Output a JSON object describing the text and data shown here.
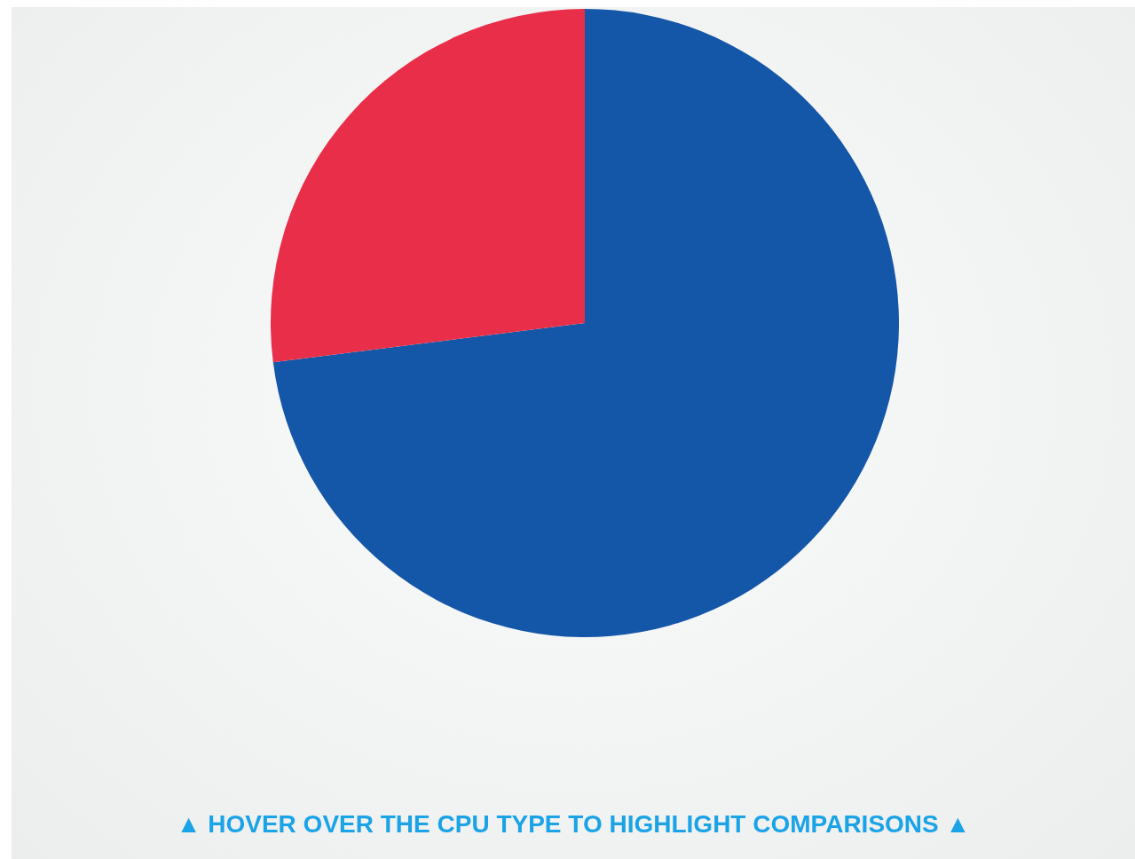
{
  "chart_data": {
    "type": "pie",
    "categories": [
      null,
      null
    ],
    "values": [
      73,
      27
    ],
    "colors": [
      "#1456a8",
      "#e92e4a"
    ],
    "legend": false,
    "annotations": [
      "▲ HOVER OVER THE CPU TYPE TO HIGHLIGHT COMPARISONS ▲"
    ]
  }
}
